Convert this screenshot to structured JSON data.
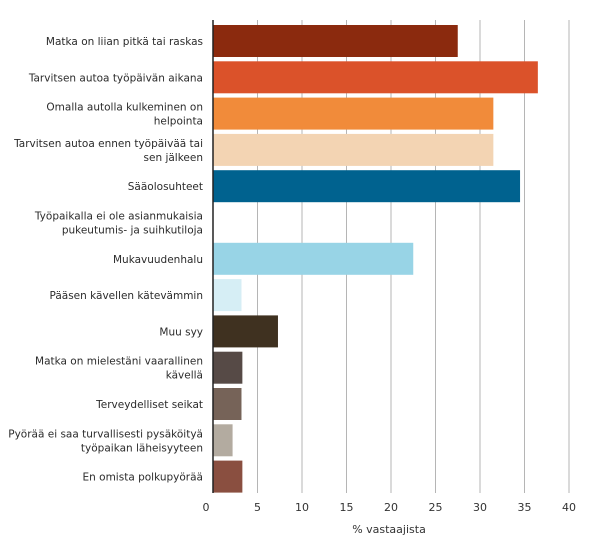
{
  "chart_data": {
    "type": "bar",
    "orientation": "horizontal",
    "xlabel": "% vastaajista",
    "xlim": [
      0,
      40
    ],
    "xticks": [
      0,
      5,
      10,
      15,
      20,
      25,
      30,
      35,
      40
    ],
    "grid": true,
    "categories": [
      [
        "Matka on liian pitkä tai raskas"
      ],
      [
        "Tarvitsen autoa työpäivän aikana"
      ],
      [
        "Omalla autolla kulkeminen on",
        "helpointa"
      ],
      [
        "Tarvitsen autoa ennen työpäivää tai",
        "sen jälkeen"
      ],
      [
        "Sääolosuhteet"
      ],
      [
        "Työpaikalla ei ole asianmukaisia",
        "pukeutumis- ja suihkutiloja"
      ],
      [
        "Mukavuudenhalu"
      ],
      [
        "Pääsen kävellen kätevämmin"
      ],
      [
        "Muu syy"
      ],
      [
        "Matka on mielestäni vaarallinen",
        "kävellä"
      ],
      [
        "Terveydelliset seikat"
      ],
      [
        "Pyörää ei saa turvallisesti pysäköityä",
        "työpaikan läheisyyteen"
      ],
      [
        "En omista polkupyörää"
      ]
    ],
    "values": [
      27.5,
      36.5,
      31.5,
      31.5,
      34.5,
      0,
      22.5,
      3.2,
      7.3,
      3.3,
      3.2,
      2.2,
      3.3
    ],
    "colors": [
      "#8b2a0e",
      "#db522a",
      "#f18b3a",
      "#f3d4b3",
      "#00628f",
      "#cccccc",
      "#98d4e6",
      "#d6eef5",
      "#3f3120",
      "#564a46",
      "#766358",
      "#b3aba0",
      "#8a4f40"
    ]
  }
}
